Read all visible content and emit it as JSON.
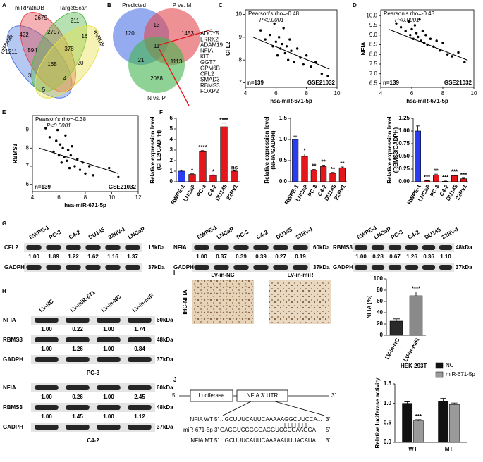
{
  "panels": {
    "A": {
      "letter": "A",
      "sets": [
        "miRWalk",
        "miRPathDB",
        "TargetScan",
        "miRDB"
      ],
      "counts": [
        2679,
        211,
        1211,
        422,
        2797,
        16,
        594,
        378,
        165,
        20,
        3,
        4,
        5
      ]
    },
    "B": {
      "letter": "B",
      "sets": [
        "Predicted",
        "P vs. M",
        "N vs. P"
      ],
      "counts": [
        120,
        13,
        1453,
        11,
        21,
        1113,
        2088
      ],
      "genes": [
        "ADCY5",
        "LRRK2",
        "ADAM19",
        "NFIA",
        "KIT",
        "GGT7",
        "GPM6B",
        "CFL2",
        "SMAD3",
        "RBMS3",
        "FOXP2"
      ]
    },
    "C": {
      "letter": "C",
      "type": "scatter",
      "ylabel": "CFL2",
      "xlabel": "hsa-miR-671-5p",
      "stat": "Pearson's rho=-0.48",
      "p": "P<0.0001",
      "n": "n=139",
      "dataset": "GSE21032",
      "xlim": [
        4,
        10
      ],
      "xticks": [
        4,
        6,
        8,
        10
      ],
      "ylim": [
        6.8,
        10.2
      ],
      "yticks": [
        7,
        8,
        9,
        10
      ],
      "x": [
        5.0,
        5.3,
        5.6,
        5.8,
        5.9,
        6.0,
        6.1,
        6.2,
        6.3,
        6.4,
        6.5,
        6.6,
        6.7,
        6.8,
        6.9,
        7.0,
        7.2,
        7.4,
        7.6,
        7.8,
        8.0,
        8.3,
        8.6,
        9.0,
        9.4
      ],
      "y": [
        9.3,
        8.9,
        9.1,
        8.6,
        9.6,
        8.8,
        8.2,
        9.0,
        8.5,
        8.7,
        9.4,
        8.3,
        8.6,
        8.0,
        8.9,
        8.4,
        7.9,
        8.5,
        8.1,
        7.8,
        8.2,
        7.7,
        7.9,
        7.4,
        7.3
      ],
      "fit_x": [
        4.5,
        9.5
      ],
      "fit_y": [
        9.0,
        7.6
      ]
    },
    "D": {
      "letter": "D",
      "type": "scatter",
      "ylabel": "NFIA",
      "xlabel": "hsa-miR-671-5p",
      "stat": "Pearson's rho=-0.43",
      "p": "P<0.0001",
      "n": "n=139",
      "dataset": "GSE21032",
      "xlim": [
        4,
        10
      ],
      "xticks": [
        4,
        6,
        8,
        10
      ],
      "ylim": [
        6.3,
        10.3
      ],
      "yticks": [
        6.5,
        {
          "value": 7,
          "label": "7.0"
        },
        7.5,
        {
          "value": 8,
          "label": "8.0"
        },
        8.5,
        {
          "value": 9,
          "label": "9.0"
        },
        9.5,
        {
          "value": 10,
          "label": "10.0"
        }
      ],
      "x": [
        5.0,
        5.3,
        5.6,
        5.8,
        5.9,
        6.0,
        6.1,
        6.2,
        6.3,
        6.4,
        6.5,
        6.6,
        6.7,
        6.8,
        6.9,
        7.0,
        7.2,
        7.4,
        7.6,
        7.8,
        8.0,
        8.3,
        8.6,
        9.0,
        9.4
      ],
      "y": [
        9.6,
        9.4,
        9.2,
        9.7,
        9.0,
        9.3,
        8.8,
        9.5,
        9.1,
        8.9,
        9.8,
        8.7,
        9.2,
        8.6,
        9.0,
        8.5,
        8.8,
        8.4,
        8.7,
        8.2,
        8.6,
        8.0,
        7.9,
        8.1,
        7.6
      ],
      "fit_x": [
        4.5,
        9.6
      ],
      "fit_y": [
        9.3,
        7.7
      ]
    },
    "E": {
      "letter": "E",
      "type": "scatter",
      "ylabel": "RBMS3",
      "xlabel": "hsa-miR-671-5p",
      "stat": "Pearson's rho=-0.38",
      "p": "P<0.0001",
      "n": "n=139",
      "dataset": "GSE21032",
      "xlim": [
        4,
        12
      ],
      "xticks": [
        4,
        6,
        8,
        10,
        12
      ],
      "ylim": [
        5.6,
        9.8
      ],
      "yticks": [
        6,
        7,
        8,
        9
      ],
      "x": [
        5.0,
        5.3,
        5.6,
        5.8,
        5.9,
        6.0,
        6.1,
        6.2,
        6.3,
        6.4,
        6.5,
        6.6,
        6.7,
        6.8,
        6.9,
        7.0,
        7.2,
        7.4,
        7.6,
        7.8,
        8.0,
        8.3,
        8.6,
        9.8,
        10.5
      ],
      "y": [
        9.1,
        8.6,
        7.8,
        8.4,
        9.0,
        7.6,
        8.2,
        7.2,
        8.0,
        7.5,
        8.7,
        7.3,
        7.9,
        6.9,
        7.6,
        8.1,
        7.0,
        7.4,
        6.8,
        7.2,
        6.6,
        7.0,
        6.5,
        6.9,
        6.4
      ],
      "fit_x": [
        4.5,
        10.5
      ],
      "fit_y": [
        8.0,
        6.6
      ]
    },
    "F": {
      "letter": "F",
      "charts": [
        {
          "type": "bar",
          "ylabel": [
            "Relative expression level",
            "(CFL2/GADPH)"
          ],
          "categories": [
            "RWPE-1",
            "LNCaP",
            "PC-3",
            "C4-2",
            "DU145",
            "22Rv1"
          ],
          "values": [
            1.0,
            0.7,
            2.85,
            0.6,
            5.2,
            1.0
          ],
          "errors": [
            0.08,
            0.05,
            0.1,
            0.05,
            0.35,
            0.05
          ],
          "colors": [
            "#2b3df2",
            "#e3171c",
            "#e3171c",
            "#e3171c",
            "#e3171c",
            "#e3171c"
          ],
          "sig": [
            null,
            "*",
            "****",
            "*",
            "****",
            "ns"
          ],
          "ylim": [
            0,
            6
          ],
          "yticks": [
            0,
            1,
            2,
            3,
            4,
            5,
            6
          ]
        },
        {
          "type": "bar",
          "ylabel": [
            "Relative expression level",
            "(NFIA/GADPH)"
          ],
          "categories": [
            "RWPE-1",
            "LNCaP",
            "PC-3",
            "C4-2",
            "DU145",
            "22Rv1"
          ],
          "values": [
            1.0,
            0.6,
            0.27,
            0.36,
            0.2,
            0.33
          ],
          "errors": [
            0.08,
            0.06,
            0.02,
            0.03,
            0.02,
            0.02
          ],
          "colors": [
            "#2b3df2",
            "#e3171c",
            "#e3171c",
            "#e3171c",
            "#e3171c",
            "#e3171c"
          ],
          "sig": [
            null,
            "*",
            "**",
            "**",
            "**",
            "**"
          ],
          "ylim": [
            0,
            1.5
          ],
          "yticks": [
            {
              "value": 0,
              "label": "0.0"
            },
            0.5,
            {
              "value": 1,
              "label": "1.0"
            },
            1.5
          ]
        },
        {
          "type": "bar",
          "ylabel": [
            "Relative expression level",
            "(RBMS3/GADPH)"
          ],
          "categories": [
            "RWPE-1",
            "LNCaP",
            "PC-3",
            "C4-2",
            "DU145",
            "22Rv1"
          ],
          "values": [
            1.0,
            0.02,
            0.13,
            0.01,
            0.12,
            0.06
          ],
          "errors": [
            0.1,
            0.005,
            0.02,
            0.005,
            0.01,
            0.01
          ],
          "colors": [
            "#2b3df2",
            "#e3171c",
            "#e3171c",
            "#e3171c",
            "#e3171c",
            "#e3171c"
          ],
          "sig": [
            null,
            "***",
            "**",
            "***",
            "***",
            "***"
          ],
          "ylim": [
            0,
            1.25
          ],
          "yticks": [
            {
              "value": 0,
              "label": "0.00"
            },
            0.25,
            {
              "value": 0.5,
              "label": "0.50"
            },
            0.75,
            {
              "value": 1,
              "label": "1.00"
            },
            1.25
          ]
        }
      ]
    },
    "G": {
      "letter": "G",
      "blots": [
        {
          "lanes": [
            "RWPE-1",
            "PC-3",
            "C4-2",
            "DU145",
            "22RV-1",
            "LNCaP"
          ],
          "rows": [
            {
              "protein": "CFL2",
              "kda": "15kDa",
              "levels": [
                "1.00",
                "1.89",
                "1.22",
                "1.62",
                "1.16",
                "1.37"
              ]
            },
            {
              "protein": "GADPH",
              "kda": "37kDa"
            }
          ]
        },
        {
          "lanes": [
            "RWPE-1",
            "LNCaP",
            "PC-3",
            "C4-2",
            "DU145",
            "22RV-1"
          ],
          "rows": [
            {
              "protein": "NFIA",
              "kda": "60kDa",
              "levels": [
                "1.00",
                "0.37",
                "0.39",
                "0.39",
                "0.27",
                "0.19"
              ]
            },
            {
              "protein": "GADPH",
              "kda": "37kDa"
            }
          ]
        },
        {
          "lanes": [
            "RWPE-1",
            "LNCaP",
            "PC-3",
            "C4-2",
            "DU145",
            "22RV-1"
          ],
          "rows": [
            {
              "protein": "RBMS3",
              "kda": "48kDa",
              "levels": [
                "1.00",
                "0.28",
                "0.67",
                "1.26",
                "0.36",
                "1.10"
              ]
            },
            {
              "protein": "GADPH",
              "kda": "37kDa"
            }
          ]
        }
      ]
    },
    "H": {
      "letter": "H",
      "lanes": [
        "LV-NC",
        "LV-miR-671",
        "LV-in-NC",
        "LV-in-miR"
      ],
      "blots": [
        {
          "cell": "PC-3",
          "rows": [
            {
              "protein": "NFIA",
              "kda": "60kDa",
              "levels": [
                "1.00",
                "0.22",
                "1.00",
                "1.74"
              ]
            },
            {
              "protein": "RBMS3",
              "kda": "48kDa",
              "levels": [
                "1.00",
                "1.26",
                "1.00",
                "0.84"
              ]
            },
            {
              "protein": "GADPH",
              "kda": "37kDa"
            }
          ]
        },
        {
          "cell": "C4-2",
          "rows": [
            {
              "protein": "NFIA",
              "kda": "60kDa",
              "levels": [
                "1.00",
                "0.26",
                "1.00",
                "2.45"
              ]
            },
            {
              "protein": "RBMS3",
              "kda": "48kDa",
              "levels": [
                "1.00",
                "1.45",
                "1.00",
                "1.12"
              ]
            },
            {
              "protein": "GADPH",
              "kda": "37kDa"
            }
          ]
        }
      ]
    },
    "I": {
      "letter": "I",
      "images": [
        "LV-in-NC",
        "LV-in-miR"
      ],
      "stain": "IHC-NFIA",
      "chart": {
        "type": "bar",
        "ylabel": [
          "NFIA (%)"
        ],
        "categories": [
          "LV-in-NC",
          "LV-in-miR"
        ],
        "values": [
          25,
          70
        ],
        "errors": [
          4,
          7
        ],
        "colors": [
          "#2a2a2a",
          "#8a8a8a"
        ],
        "sig": [
          null,
          "****"
        ],
        "ylim": [
          0,
          100
        ],
        "yticks": [
          0,
          20,
          40,
          60,
          80,
          100
        ]
      }
    },
    "J": {
      "letter": "J",
      "construct": {
        "five": "5'",
        "three": "3'",
        "boxes": [
          "Luciferase",
          "NFIA 3' UTR"
        ]
      },
      "alignment": [
        [
          "NFIA WT 5'",
          "...GCUUUCAUUCAAAAAGGCUUCCA...",
          "3'"
        ],
        [
          "miR-671-5p 3'",
          "GAGGUCGGGGAGGUCCCGAAGGA",
          "5'"
        ],
        [
          "NFIA MT 5'",
          "...GCUUUCAUUCAAAAAUUUACAUA...",
          "3'"
        ]
      ],
      "chart": {
        "type": "bar",
        "title": "HEK 293T",
        "ylabel": [
          "Relative luciferase activity"
        ],
        "categories": [
          "WT",
          "MT"
        ],
        "series": [
          {
            "name": "NC",
            "color": "#111111",
            "values": [
              1.0,
              1.05
            ],
            "errors": [
              0.04,
              0.08
            ],
            "sig": [
              null,
              null
            ]
          },
          {
            "name": "miR-671-5p",
            "color": "#9a9a9a",
            "values": [
              0.55,
              0.97
            ],
            "errors": [
              0.03,
              0.04
            ],
            "sig": [
              "***",
              null
            ]
          }
        ],
        "ylim": [
          0,
          1.5
        ],
        "yticks": [
          {
            "value": 0,
            "label": "0.0"
          },
          0.5,
          {
            "value": 1,
            "label": "1.0"
          },
          1.5
        ]
      }
    }
  }
}
